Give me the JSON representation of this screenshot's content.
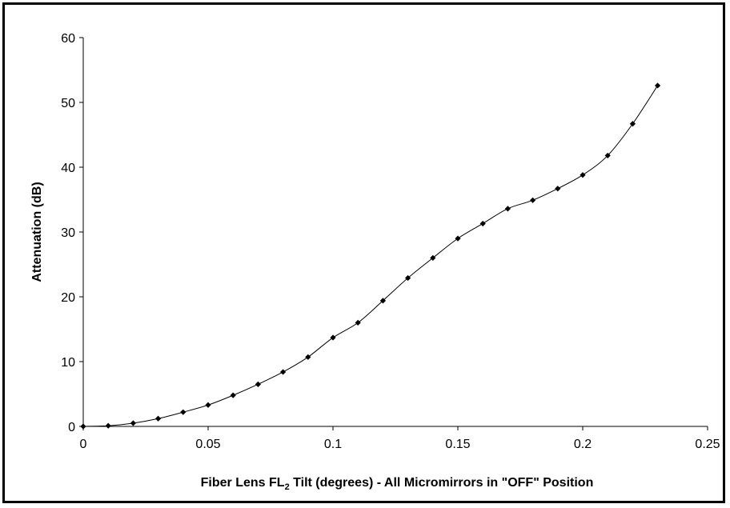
{
  "chart_data": {
    "type": "line",
    "title": "",
    "xlabel": "Fiber Lens FL",
    "xlabel_sub": "2",
    "xlabel_rest": " Tilt (degrees) - All Micromirrors in \"OFF\" Position",
    "ylabel": "Attenuation (dB)",
    "xlim": [
      0,
      0.25
    ],
    "ylim": [
      0,
      60
    ],
    "x_ticks": [
      0,
      0.05,
      0.1,
      0.15,
      0.2,
      0.25
    ],
    "x_tick_labels": [
      "0",
      "0.05",
      "0.1",
      "0.15",
      "0.2",
      "0.25"
    ],
    "y_ticks": [
      0,
      10,
      20,
      30,
      40,
      50,
      60
    ],
    "y_tick_labels": [
      "0",
      "10",
      "20",
      "30",
      "40",
      "50",
      "60"
    ],
    "grid": false,
    "legend": "none",
    "series": [
      {
        "color": "#000000",
        "marker": "diamond",
        "smooth": true,
        "x": [
          0,
          0.01,
          0.02,
          0.03,
          0.04,
          0.05,
          0.06,
          0.07,
          0.08,
          0.09,
          0.1,
          0.11,
          0.12,
          0.13,
          0.14,
          0.15,
          0.16,
          0.17,
          0.18,
          0.19,
          0.2,
          0.21,
          0.22,
          0.23
        ],
        "y": [
          0,
          0.1,
          0.5,
          1.2,
          2.2,
          3.3,
          4.8,
          6.5,
          8.4,
          10.7,
          13.7,
          16.0,
          19.4,
          22.9,
          26.0,
          29.0,
          31.3,
          33.6,
          34.9,
          36.7,
          38.8,
          41.8,
          46.7,
          52.6
        ]
      }
    ]
  }
}
